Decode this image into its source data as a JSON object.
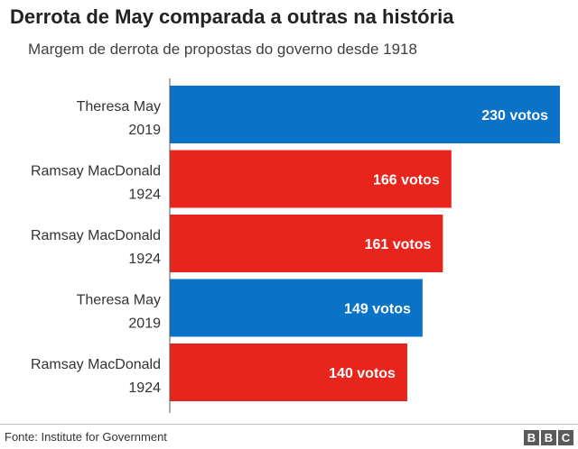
{
  "header": {
    "title": "Derrota de May comparada a outras na história",
    "subtitle": "Margem de derrota de propostas do governo desde 1918"
  },
  "colors": {
    "may": "#0a73c7",
    "macdonald": "#e8251c",
    "axis": "#555555"
  },
  "chart_data": {
    "type": "bar",
    "orientation": "horizontal",
    "title": "Derrota de May comparada a outras na história",
    "subtitle": "Margem de derrota de propostas do governo desde 1918",
    "xlim": [
      0,
      230
    ],
    "grid": false,
    "bars": [
      {
        "name": "Theresa May",
        "year": "2019",
        "value": 230,
        "label": "230 votos",
        "color": "#0a73c7"
      },
      {
        "name": "Ramsay MacDonald",
        "year": "1924",
        "value": 166,
        "label": "166 votos",
        "color": "#e8251c"
      },
      {
        "name": "Ramsay MacDonald",
        "year": "1924",
        "value": 161,
        "label": "161 votos",
        "color": "#e8251c"
      },
      {
        "name": "Theresa May",
        "year": "2019",
        "value": 149,
        "label": "149 votos",
        "color": "#0a73c7"
      },
      {
        "name": "Ramsay MacDonald",
        "year": "1924",
        "value": 140,
        "label": "140 votos",
        "color": "#e8251c"
      }
    ]
  },
  "footer": {
    "source": "Fonte: Institute for Government",
    "logo_letters": [
      "B",
      "B",
      "C"
    ]
  }
}
